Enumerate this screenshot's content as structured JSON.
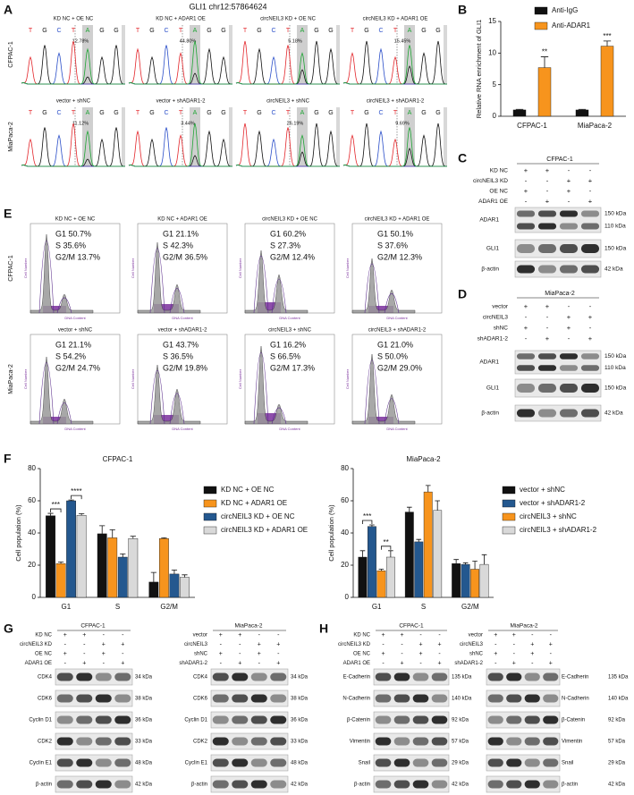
{
  "panel_labels": [
    "A",
    "B",
    "C",
    "D",
    "E",
    "F",
    "G",
    "H"
  ],
  "sequencing": {
    "title": "GLI1 chr12:57864624",
    "bases": [
      "T",
      "G",
      "C",
      "T",
      "A",
      "G",
      "G"
    ],
    "base_colors": {
      "T": "#e3262b",
      "G": "#111111",
      "C": "#2b4fc9",
      "A": "#1fa535"
    },
    "rows": [
      {
        "cell_line": "CFPAC-1",
        "samples": [
          {
            "label": "KD NC + OE NC",
            "percent": "12.78%"
          },
          {
            "label": "KD NC + ADAR1 OE",
            "percent": "44.80%"
          },
          {
            "label": "circNEIL3 KD + OE NC",
            "percent": "5.18%"
          },
          {
            "label": "circNEIL3 KD + ADAR1 OE",
            "percent": "15.45%"
          }
        ]
      },
      {
        "cell_line": "MiaPaca-2",
        "samples": [
          {
            "label": "vector + shNC",
            "percent": "11.12%"
          },
          {
            "label": "vector + shADAR1-2",
            "percent": "3.44%"
          },
          {
            "label": "circNEIL3 + shNC",
            "percent": "26.19%"
          },
          {
            "label": "circNEIL3 + shADAR1-2",
            "percent": "9.69%"
          }
        ]
      }
    ]
  },
  "chart_data": [
    {
      "type": "bar",
      "y_label": "Relative RNA enrichment of GLI1",
      "categories": [
        "CFPAC-1",
        "MiaPaca-2"
      ],
      "series": [
        {
          "name": "Anti-IgG",
          "color": "#111111",
          "values": [
            1,
            1
          ],
          "errors": [
            0.1,
            0.1
          ]
        },
        {
          "name": "Anti-ADAR1",
          "color": "#f7941d",
          "values": [
            7.7,
            11.1
          ],
          "errors": [
            1.7,
            0.8
          ]
        }
      ],
      "significance": [
        "**",
        "***"
      ],
      "ylim": [
        0,
        15
      ],
      "yticks": [
        0,
        5,
        10,
        15
      ],
      "legend": "top"
    },
    {
      "type": "bar",
      "title": "CFPAC-1",
      "y_label": "Cell population (%)",
      "categories": [
        "G1",
        "S",
        "G2/M"
      ],
      "series": [
        {
          "name": "KD NC + OE NC",
          "color": "#111111",
          "values": [
            50.7,
            39.5,
            9.5
          ],
          "errors": [
            1.5,
            5,
            6
          ]
        },
        {
          "name": "KD NC + ADAR1 OE",
          "color": "#f7941d",
          "values": [
            21,
            37,
            36.5
          ],
          "errors": [
            1,
            5,
            0.5
          ]
        },
        {
          "name": "circNEIL3 KD + OE NC",
          "color": "#24588f",
          "values": [
            60,
            25,
            14.5
          ],
          "errors": [
            0.5,
            2,
            2.5
          ]
        },
        {
          "name": "circNEIL3 KD + ADAR1 OE",
          "color": "#d9d9d9",
          "values": [
            51,
            36.5,
            12.5
          ],
          "errors": [
            1,
            1.5,
            1.5
          ]
        }
      ],
      "brackets": [
        {
          "label": "***",
          "category": "G1",
          "between": [
            "KD NC + OE NC",
            "KD NC + ADAR1 OE"
          ]
        },
        {
          "label": "****",
          "category": "G1",
          "between": [
            "circNEIL3 KD + OE NC",
            "circNEIL3 KD + ADAR1 OE"
          ]
        }
      ],
      "ylim": [
        0,
        80
      ],
      "yticks": [
        0,
        20,
        40,
        60,
        80
      ],
      "legend": "right"
    },
    {
      "type": "bar",
      "title": "MiaPaca-2",
      "y_label": "Cell population (%)",
      "categories": [
        "G1",
        "S",
        "G2/M"
      ],
      "series": [
        {
          "name": "vector + shNC",
          "color": "#111111",
          "values": [
            25,
            53,
            21
          ],
          "errors": [
            4,
            3,
            2.5
          ]
        },
        {
          "name": "vector + shADAR1-2",
          "color": "#24588f",
          "values": [
            44,
            34.5,
            20.5
          ],
          "errors": [
            1,
            1.5,
            1
          ]
        },
        {
          "name": "circNEIL3 + shNC",
          "color": "#f7941d",
          "values": [
            16.5,
            65.5,
            17.5
          ],
          "errors": [
            1,
            4,
            5
          ]
        },
        {
          "name": "circNEIL3 + shADAR1-2",
          "color": "#d9d9d9",
          "values": [
            25,
            54,
            20.5
          ],
          "errors": [
            4,
            6,
            6
          ]
        }
      ],
      "brackets": [
        {
          "label": "***",
          "category": "G1",
          "between": [
            "vector + shNC",
            "vector + shADAR1-2"
          ]
        },
        {
          "label": "**",
          "category": "G1",
          "between": [
            "circNEIL3 + shNC",
            "circNEIL3 + shADAR1-2"
          ]
        }
      ],
      "ylim": [
        0,
        80
      ],
      "yticks": [
        0,
        20,
        40,
        60,
        80
      ],
      "legend": "right"
    }
  ],
  "flow": {
    "x_label": "DNA Content",
    "y_label": "Cell Number",
    "rows": [
      {
        "cell_line": "CFPAC-1",
        "panels": [
          {
            "title": "KD NC + OE NC",
            "stats": [
              "G1 50.7%",
              "S 35.6%",
              "G2/M 13.7%"
            ]
          },
          {
            "title": "KD NC + ADAR1 OE",
            "stats": [
              "G1 21.1%",
              "S 42.3%",
              "G2/M 36.5%"
            ]
          },
          {
            "title": "circNEIL3 KD + OE NC",
            "stats": [
              "G1 60.2%",
              "S 27.3%",
              "G2/M 12.4%"
            ]
          },
          {
            "title": "circNEIL3 KD + ADAR1 OE",
            "stats": [
              "G1 50.1%",
              "S 37.6%",
              "G2/M 12.3%"
            ]
          }
        ]
      },
      {
        "cell_line": "MiaPaca-2",
        "panels": [
          {
            "title": "vector + shNC",
            "stats": [
              "G1 21.1%",
              "S 54.2%",
              "G2/M 24.7%"
            ]
          },
          {
            "title": "vector + shADAR1-2",
            "stats": [
              "G1 43.7%",
              "S 36.5%",
              "G2/M 19.8%"
            ]
          },
          {
            "title": "circNEIL3 + shNC",
            "stats": [
              "G1 16.2%",
              "S 66.5%",
              "G2/M 17.3%"
            ]
          },
          {
            "title": "circNEIL3 + shADAR1-2",
            "stats": [
              "G1 21.0%",
              "S 50.0%",
              "G2/M 29.0%"
            ]
          }
        ]
      }
    ]
  },
  "blots": {
    "C": {
      "title": "CFPAC-1",
      "conditions": [
        {
          "name": "KD NC",
          "signs": [
            "+",
            "+",
            "-",
            "-"
          ]
        },
        {
          "name": "circNEIL3 KD",
          "signs": [
            "-",
            "-",
            "+",
            "+"
          ]
        },
        {
          "name": "OE NC",
          "signs": [
            "+",
            "-",
            "+",
            "-"
          ]
        },
        {
          "name": "ADAR1 OE",
          "signs": [
            "-",
            "+",
            "-",
            "+"
          ]
        }
      ],
      "bands": [
        {
          "protein": "ADAR1",
          "kda": [
            "150 kDa",
            "110 kDa"
          ]
        },
        {
          "protein": "GLI1",
          "kda": [
            "150 kDa"
          ]
        },
        {
          "protein": "β-actin",
          "kda": [
            "42 kDa"
          ]
        }
      ]
    },
    "D": {
      "title": "MiaPaca-2",
      "conditions": [
        {
          "name": "vector",
          "signs": [
            "+",
            "+",
            "-",
            "-"
          ]
        },
        {
          "name": "circNEIL3",
          "signs": [
            "-",
            "-",
            "+",
            "+"
          ]
        },
        {
          "name": "shNC",
          "signs": [
            "+",
            "-",
            "+",
            "-"
          ]
        },
        {
          "name": "shADAR1-2",
          "signs": [
            "-",
            "+",
            "-",
            "+"
          ]
        }
      ],
      "bands": [
        {
          "protein": "ADAR1",
          "kda": [
            "150 kDa",
            "110 kDa"
          ]
        },
        {
          "protein": "GLI1",
          "kda": [
            "150 kDa"
          ]
        },
        {
          "protein": "β-actin",
          "kda": [
            "42 kDa"
          ]
        }
      ]
    },
    "G1": {
      "title": "CFPAC-1",
      "conditions": [
        {
          "name": "KD NC",
          "signs": [
            "+",
            "+",
            "-",
            "-"
          ]
        },
        {
          "name": "circNEIL3 KD",
          "signs": [
            "-",
            "-",
            "+",
            "+"
          ]
        },
        {
          "name": "OE NC",
          "signs": [
            "+",
            "-",
            "+",
            "-"
          ]
        },
        {
          "name": "ADAR1 OE",
          "signs": [
            "-",
            "+",
            "-",
            "+"
          ]
        }
      ],
      "bands": [
        {
          "protein": "CDK4",
          "kda": [
            "34 kDa"
          ]
        },
        {
          "protein": "CDK6",
          "kda": [
            "38 kDa"
          ]
        },
        {
          "protein": "Cyclin D1",
          "kda": [
            "36 kDa"
          ]
        },
        {
          "protein": "CDK2",
          "kda": [
            "33 kDa"
          ]
        },
        {
          "protein": "Cyclin E1",
          "kda": [
            "48 kDa"
          ]
        },
        {
          "protein": "β-actin",
          "kda": [
            "42 kDa"
          ]
        }
      ]
    },
    "G2": {
      "title": "MiaPaca-2",
      "conditions": [
        {
          "name": "vector",
          "signs": [
            "+",
            "+",
            "-",
            "-"
          ]
        },
        {
          "name": "circNEIL3",
          "signs": [
            "-",
            "-",
            "+",
            "+"
          ]
        },
        {
          "name": "shNC",
          "signs": [
            "+",
            "-",
            "+",
            "-"
          ]
        },
        {
          "name": "shADAR1-2",
          "signs": [
            "-",
            "+",
            "-",
            "+"
          ]
        }
      ],
      "bands": [
        {
          "protein": "CDK4",
          "kda": [
            "34 kDa"
          ]
        },
        {
          "protein": "CDK6",
          "kda": [
            "38 kDa"
          ]
        },
        {
          "protein": "Cyclin D1",
          "kda": [
            "36 kDa"
          ]
        },
        {
          "protein": "CDK2",
          "kda": [
            "33 kDa"
          ]
        },
        {
          "protein": "Cyclin E1",
          "kda": [
            "48 kDa"
          ]
        },
        {
          "protein": "β-actin",
          "kda": [
            "42 kDa"
          ]
        }
      ]
    },
    "H1": {
      "title": "CFPAC-1",
      "conditions": [
        {
          "name": "KD NC",
          "signs": [
            "+",
            "+",
            "-",
            "-"
          ]
        },
        {
          "name": "circNEIL3 KD",
          "signs": [
            "-",
            "-",
            "+",
            "+"
          ]
        },
        {
          "name": "OE NC",
          "signs": [
            "+",
            "-",
            "+",
            "-"
          ]
        },
        {
          "name": "ADAR1 OE",
          "signs": [
            "-",
            "+",
            "-",
            "+"
          ]
        }
      ],
      "bands": [
        {
          "protein": "E-Cadherin",
          "kda": [
            "135 kDa"
          ]
        },
        {
          "protein": "N-Cadherin",
          "kda": [
            "140 kDa"
          ]
        },
        {
          "protein": "β-Catenin",
          "kda": [
            "92 kDa"
          ]
        },
        {
          "protein": "Vimentin",
          "kda": [
            "57 kDa"
          ]
        },
        {
          "protein": "Snail",
          "kda": [
            "29 kDa"
          ]
        },
        {
          "protein": "β-actin",
          "kda": [
            "42 kDa"
          ]
        }
      ]
    },
    "H2": {
      "title": "MiaPaca-2",
      "conditions": [
        {
          "name": "vector",
          "signs": [
            "+",
            "+",
            "-",
            "-"
          ]
        },
        {
          "name": "circNEIL3",
          "signs": [
            "-",
            "-",
            "+",
            "+"
          ]
        },
        {
          "name": "shNC",
          "signs": [
            "+",
            "-",
            "+",
            "-"
          ]
        },
        {
          "name": "shADAR1-2",
          "signs": [
            "-",
            "+",
            "-",
            "+"
          ]
        }
      ],
      "bands": [
        {
          "protein": "E-Cadherin",
          "kda": [
            "135 kDa"
          ]
        },
        {
          "protein": "N-Cadherin",
          "kda": [
            "140 kDa"
          ]
        },
        {
          "protein": "β-Catenin",
          "kda": [
            "92 kDa"
          ]
        },
        {
          "protein": "Vimentin",
          "kda": [
            "57 kDa"
          ]
        },
        {
          "protein": "Snail",
          "kda": [
            "29 kDa"
          ]
        },
        {
          "protein": "β-actin",
          "kda": [
            "42 kDa"
          ]
        }
      ]
    }
  }
}
